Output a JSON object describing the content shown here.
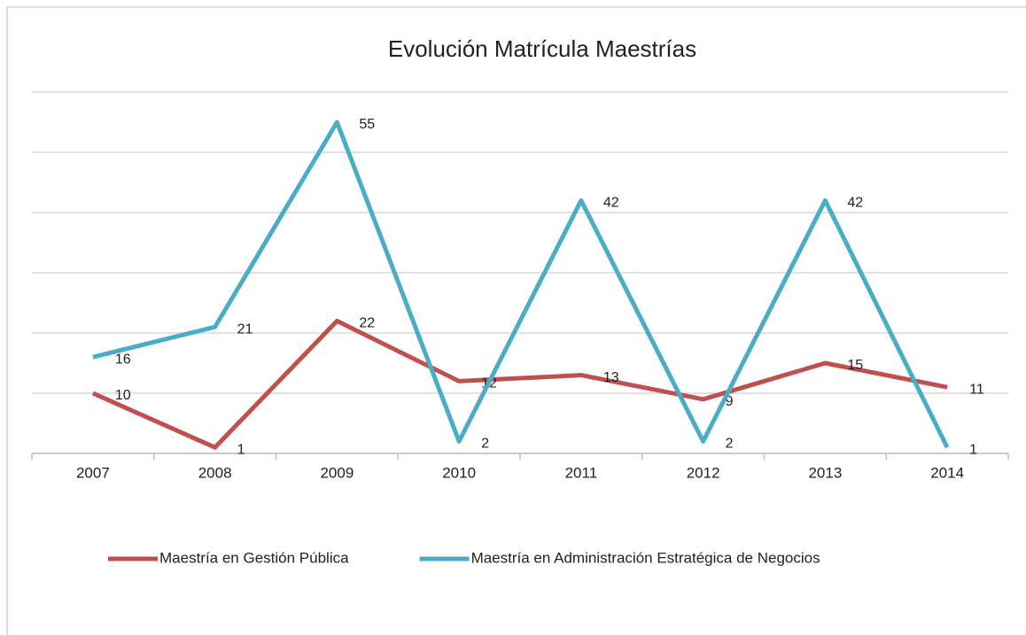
{
  "chart_data": {
    "type": "line",
    "title": "Evolución Matrícula Maestrías",
    "categories": [
      "2007",
      "2008",
      "2009",
      "2010",
      "2011",
      "2012",
      "2013",
      "2014"
    ],
    "series": [
      {
        "name": "Maestría en Gestión Pública",
        "color": "#c0504d",
        "values": [
          10,
          1,
          22,
          12,
          13,
          9,
          15,
          11
        ]
      },
      {
        "name": "Maestría en Administración Estratégica de Negocios",
        "color": "#4bacc6",
        "values": [
          16,
          21,
          55,
          2,
          42,
          2,
          42,
          1
        ]
      }
    ],
    "ylim": [
      0,
      60
    ],
    "yticks": [
      0,
      10,
      20,
      30,
      40,
      50,
      60
    ],
    "grid": true,
    "legend": "bottom"
  }
}
